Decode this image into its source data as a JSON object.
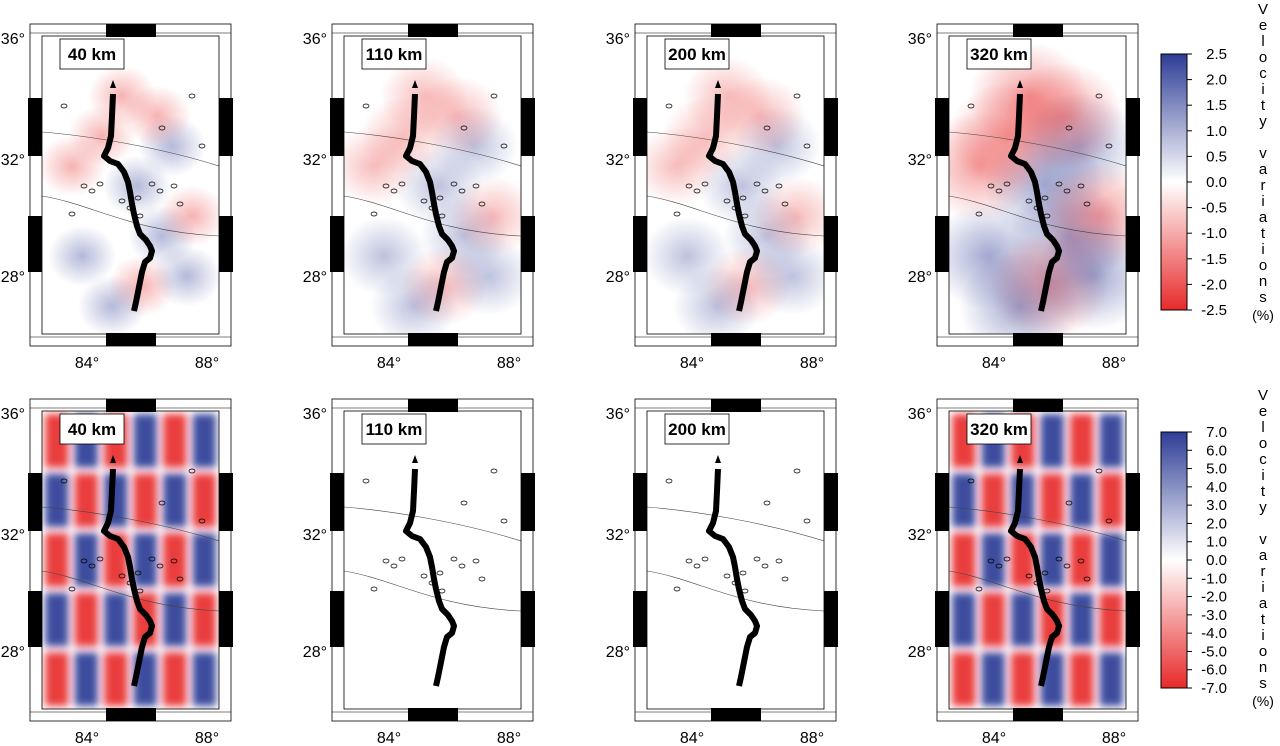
{
  "rows": [
    {
      "panels": [
        {
          "depth_label": "40 km",
          "pattern": "recovered"
        },
        {
          "depth_label": "110 km",
          "pattern": "recovered"
        },
        {
          "depth_label": "200 km",
          "pattern": "recovered"
        },
        {
          "depth_label": "320 km",
          "pattern": "recovered"
        }
      ],
      "colorbar": {
        "ticks": [
          "2.5",
          "2.0",
          "1.5",
          "1.0",
          "0.5",
          "0.0",
          "-0.5",
          "-1.0",
          "-1.5",
          "-2.0",
          "-2.5"
        ],
        "title_letters": [
          "V",
          "e",
          "l",
          "o",
          "c",
          "i",
          "t",
          "y",
          "",
          "v",
          "a",
          "r",
          "i",
          "a",
          "t",
          "i",
          "o",
          "n",
          "s"
        ],
        "unit": "(%)",
        "max_color": "#2e3d96",
        "min_color": "#e82a2a"
      }
    },
    {
      "panels": [
        {
          "depth_label": "40 km",
          "pattern": "checkerboard"
        },
        {
          "depth_label": "110 km",
          "pattern": "blank"
        },
        {
          "depth_label": "200 km",
          "pattern": "blank"
        },
        {
          "depth_label": "320 km",
          "pattern": "checkerboard"
        }
      ],
      "colorbar": {
        "ticks": [
          "7.0",
          "6.0",
          "5.0",
          "4.0",
          "3.0",
          "2.0",
          "1.0",
          "0.0",
          "-1.0",
          "-2.0",
          "-3.0",
          "-4.0",
          "-5.0",
          "-6.0",
          "-7.0"
        ],
        "title_letters": [
          "V",
          "e",
          "l",
          "o",
          "c",
          "i",
          "t",
          "y",
          "",
          "v",
          "a",
          "r",
          "i",
          "a",
          "t",
          "i",
          "o",
          "n",
          "s"
        ],
        "unit": "(%)",
        "max_color": "#2e3d96",
        "min_color": "#e82a2a"
      }
    }
  ],
  "axes": {
    "y_ticks": [
      "36°",
      "32°",
      "28°"
    ],
    "x_ticks": [
      "84°",
      "88°"
    ]
  }
}
